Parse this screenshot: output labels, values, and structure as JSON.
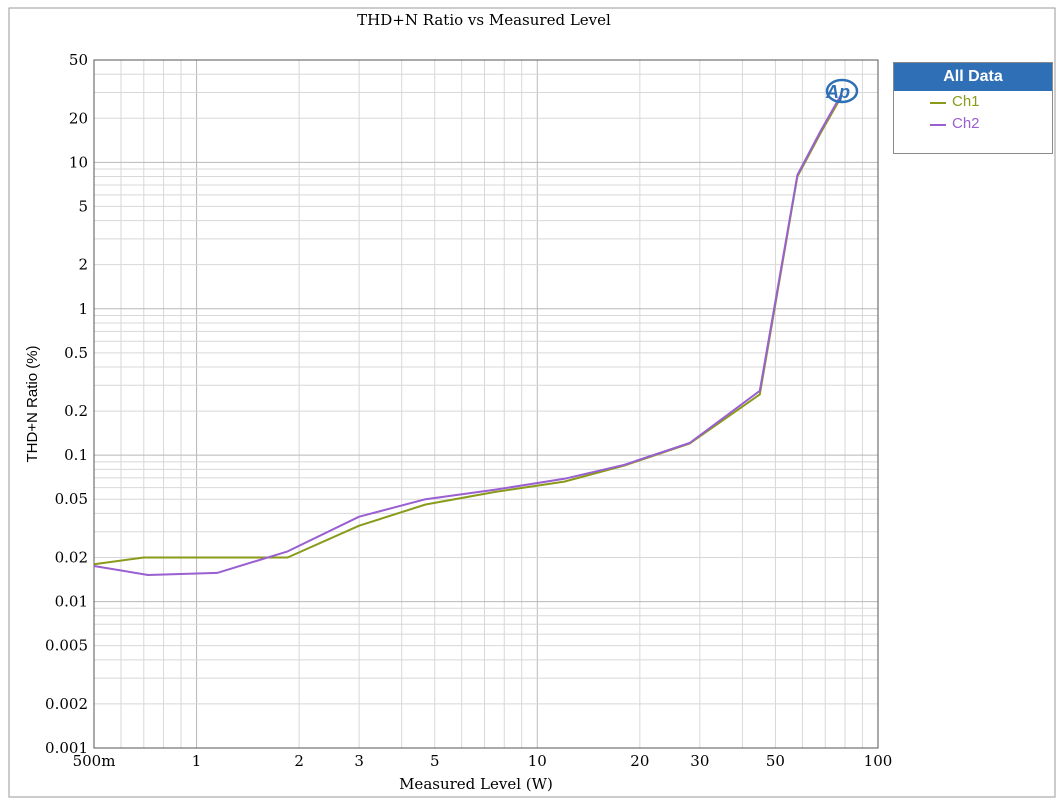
{
  "chart_data": {
    "type": "line",
    "title": "THD+N Ratio vs Measured Level",
    "xlabel": "Measured Level (W)",
    "ylabel": "THD+N Ratio (%)",
    "x_scale": "log",
    "y_scale": "log",
    "xlim": [
      0.5,
      100
    ],
    "ylim": [
      0.001,
      50
    ],
    "grid": true,
    "x_ticks": [
      {
        "value": 0.5,
        "label": "500m"
      },
      {
        "value": 1,
        "label": "1"
      },
      {
        "value": 2,
        "label": "2"
      },
      {
        "value": 3,
        "label": "3"
      },
      {
        "value": 5,
        "label": "5"
      },
      {
        "value": 10,
        "label": "10"
      },
      {
        "value": 20,
        "label": "20"
      },
      {
        "value": 30,
        "label": "30"
      },
      {
        "value": 50,
        "label": "50"
      },
      {
        "value": 100,
        "label": "100"
      }
    ],
    "y_ticks": [
      {
        "value": 50,
        "label": "50"
      },
      {
        "value": 20,
        "label": "20"
      },
      {
        "value": 10,
        "label": "10"
      },
      {
        "value": 5,
        "label": "5"
      },
      {
        "value": 2,
        "label": "2"
      },
      {
        "value": 1,
        "label": "1"
      },
      {
        "value": 0.5,
        "label": "0.5"
      },
      {
        "value": 0.2,
        "label": "0.2"
      },
      {
        "value": 0.1,
        "label": "0.1"
      },
      {
        "value": 0.05,
        "label": "0.05"
      },
      {
        "value": 0.02,
        "label": "0.02"
      },
      {
        "value": 0.01,
        "label": "0.01"
      },
      {
        "value": 0.005,
        "label": "0.005"
      },
      {
        "value": 0.002,
        "label": "0.002"
      },
      {
        "value": 0.001,
        "label": "0.001"
      }
    ],
    "legend": {
      "title": "All Data",
      "position": "right"
    },
    "series": [
      {
        "name": "Ch1",
        "color": "#8a9a1a",
        "x": [
          0.5,
          0.7,
          1.15,
          1.85,
          3.0,
          4.7,
          7.5,
          12,
          18,
          28,
          45,
          58,
          68,
          78
        ],
        "y": [
          0.018,
          0.02,
          0.02,
          0.02,
          0.033,
          0.046,
          0.056,
          0.066,
          0.085,
          0.12,
          0.26,
          8.0,
          16.0,
          28.0
        ]
      },
      {
        "name": "Ch2",
        "color": "#9a5fd0",
        "x": [
          0.5,
          0.72,
          1.15,
          1.85,
          3.0,
          4.7,
          7.5,
          12,
          18,
          28,
          45,
          58,
          68,
          78
        ],
        "y": [
          0.0175,
          0.0152,
          0.0157,
          0.022,
          0.038,
          0.05,
          0.058,
          0.069,
          0.086,
          0.121,
          0.275,
          8.2,
          16.5,
          29.0
        ]
      }
    ]
  }
}
